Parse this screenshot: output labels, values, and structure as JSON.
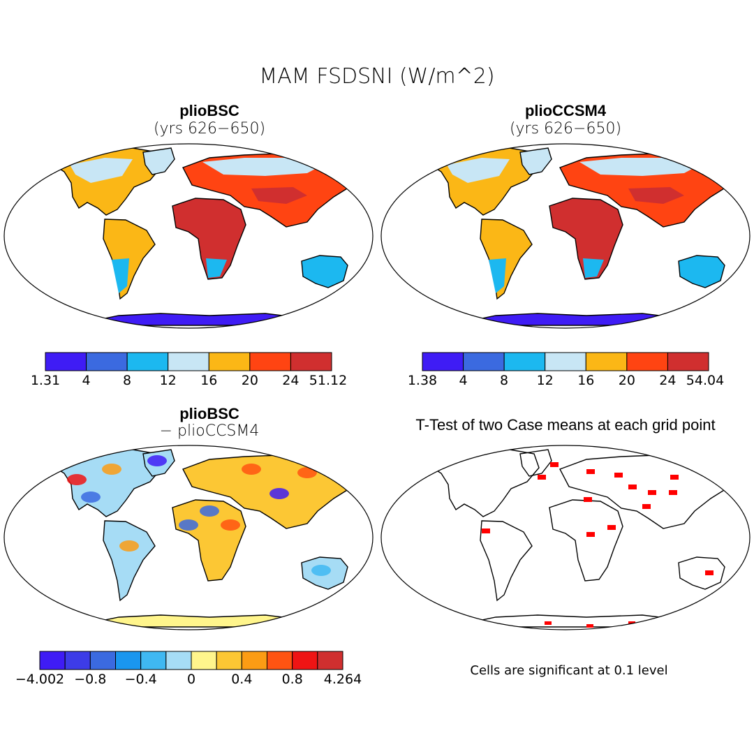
{
  "figure_title": "MAM FSDSNI (W/m^2)",
  "panels": {
    "top_left": {
      "title": "plioBSC",
      "subtitle": "(yrs 626−650)"
    },
    "top_right": {
      "title": "plioCCSM4",
      "subtitle": "(yrs 626−650)"
    },
    "bottom_left": {
      "title": "plioBSC",
      "subtitle": "− plioCCSM4"
    },
    "bottom_right": {
      "title": "T-Test of two Case means at each grid point",
      "footnote": "Cells are significant at 0.1 level"
    }
  },
  "colorbars": {
    "top_left": {
      "colors": [
        "#3f1cf5",
        "#3b6ae0",
        "#1cb8f0",
        "#c8e6f5",
        "#fbb716",
        "#ff4412",
        "#d02f2f"
      ],
      "labels": [
        "1.31",
        "4",
        "8",
        "12",
        "16",
        "20",
        "24",
        "51.12"
      ]
    },
    "top_right": {
      "colors": [
        "#3f1cf5",
        "#3b6ae0",
        "#1cb8f0",
        "#c8e6f5",
        "#fbb716",
        "#ff4412",
        "#d02f2f"
      ],
      "labels": [
        "1.38",
        "4",
        "8",
        "12",
        "16",
        "20",
        "24",
        "54.04"
      ]
    },
    "bottom_left": {
      "colors": [
        "#3f1cf5",
        "#3d3ce8",
        "#3b6ae0",
        "#1a96ef",
        "#3fb8f2",
        "#a6dcf5",
        "#fff58c",
        "#fcc734",
        "#fb9c14",
        "#ff5412",
        "#ef1414",
        "#d02f2f"
      ],
      "labels": [
        "−4.002",
        "−0.8",
        "−0.4",
        "0",
        "0.4",
        "0.8",
        "4.264"
      ]
    }
  },
  "map_colors": {
    "antarctica_low": "#3f1cf5",
    "high_latitude": "#1cb8f0",
    "mid_latitude": "#c8e6f5",
    "warm": "#fbb716",
    "hot": "#ff4412",
    "hottest": "#d02f2f",
    "significant": "#ff0000"
  }
}
